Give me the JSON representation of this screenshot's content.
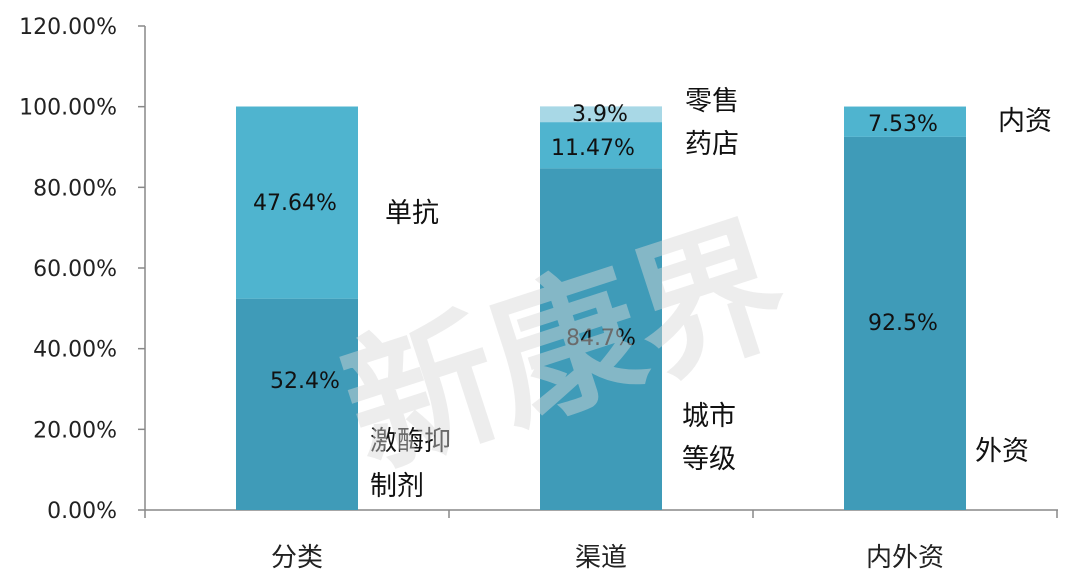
{
  "colors": {
    "bottom": "#3f9bb8",
    "middle": "#4fb4cf",
    "top": "#a8d8e6",
    "axis": "#888888"
  },
  "watermark": "新康界",
  "chart_data": {
    "type": "bar",
    "stacked": true,
    "ylim": [
      0,
      1.2
    ],
    "yticks": [
      "0.00%",
      "20.00%",
      "40.00%",
      "60.00%",
      "80.00%",
      "100.00%",
      "120.00%"
    ],
    "grid": false,
    "categories": [
      "分类",
      "渠道",
      "内外资"
    ],
    "bars": [
      {
        "segments": [
          {
            "value": 0.524,
            "label": "52.4%",
            "tone": "bottom",
            "name": "激酶抑制剂"
          },
          {
            "value": 0.4764,
            "label": "47.64%",
            "tone": "middle",
            "name": "单抗"
          }
        ]
      },
      {
        "segments": [
          {
            "value": 0.847,
            "label": "84.7%",
            "tone": "bottom",
            "name": "城市等级"
          },
          {
            "value": 0.1147,
            "label": "11.47%",
            "tone": "middle",
            "name": ""
          },
          {
            "value": 0.039,
            "label": "3.9%",
            "tone": "top",
            "name": "零售药店"
          }
        ]
      },
      {
        "segments": [
          {
            "value": 0.925,
            "label": "92.5%",
            "tone": "bottom",
            "name": "外资"
          },
          {
            "value": 0.0753,
            "label": "7.53%",
            "tone": "middle",
            "name": "内资"
          }
        ]
      }
    ]
  }
}
